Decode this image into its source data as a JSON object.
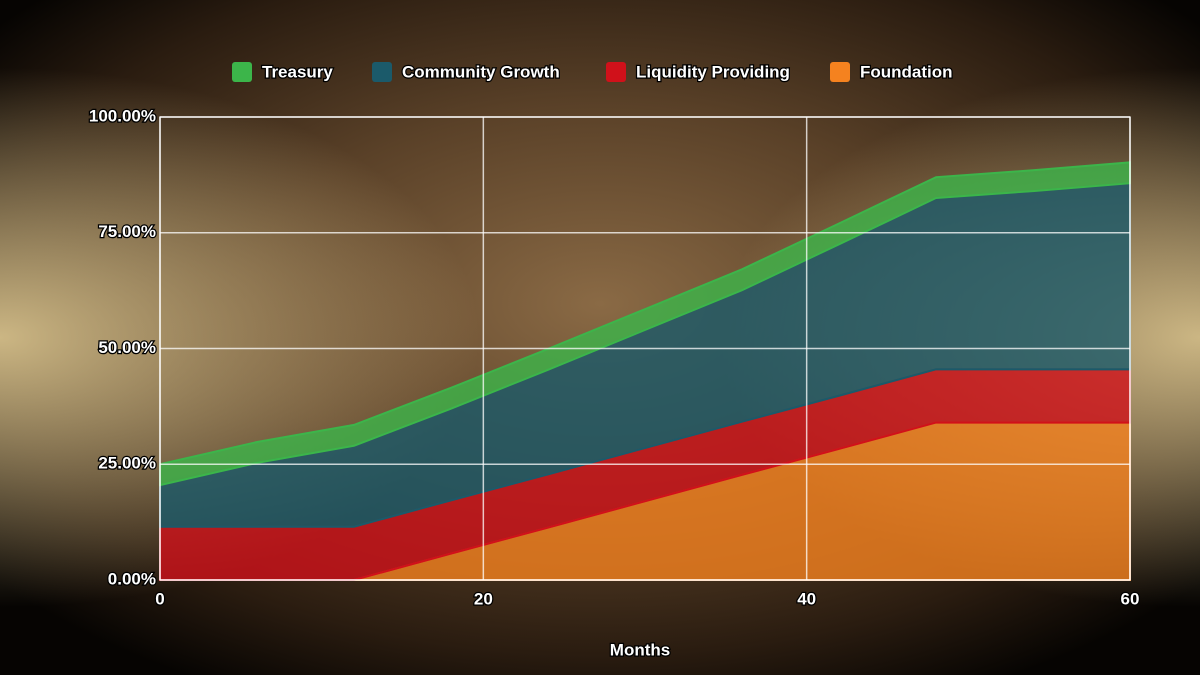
{
  "chart_data": {
    "type": "stacked_area",
    "x_label": "Months",
    "x": [
      0,
      6,
      12,
      18,
      24,
      30,
      36,
      42,
      48,
      54,
      60
    ],
    "xlim": [
      0,
      60
    ],
    "xticks": [
      0,
      20,
      40,
      60
    ],
    "ylim": [
      0,
      100
    ],
    "yticks": [
      {
        "value": 0,
        "label": "0.00%"
      },
      {
        "value": 25,
        "label": "25.00%"
      },
      {
        "value": 50,
        "label": "50.00%"
      },
      {
        "value": 75,
        "label": "75.00%"
      },
      {
        "value": 100,
        "label": "100.00%"
      }
    ],
    "grid": true,
    "legend": "top",
    "series": [
      {
        "name": "Treasury",
        "color": "#3cb54a",
        "values": [
          4.5,
          4.5,
          4.5,
          4.5,
          4.5,
          4.5,
          4.5,
          4.5,
          4.5,
          4.5,
          4.5
        ]
      },
      {
        "name": "Community Growth",
        "color": "#1b5a6a",
        "values": [
          9,
          13.8,
          17.5,
          19.8,
          22.6,
          25.5,
          28.4,
          32.7,
          37,
          38.5,
          40.2
        ]
      },
      {
        "name": "Liquidity Providing",
        "color": "#d0111a",
        "values": [
          11.5,
          11.5,
          11.5,
          11.5,
          11.5,
          11.5,
          11.5,
          11.5,
          11.5,
          11.5,
          11.5
        ]
      },
      {
        "name": "Foundation",
        "color": "#f5821f",
        "values": [
          0,
          0,
          0,
          5.7,
          11.3,
          17,
          22.7,
          28.3,
          34,
          34,
          34
        ]
      }
    ]
  }
}
